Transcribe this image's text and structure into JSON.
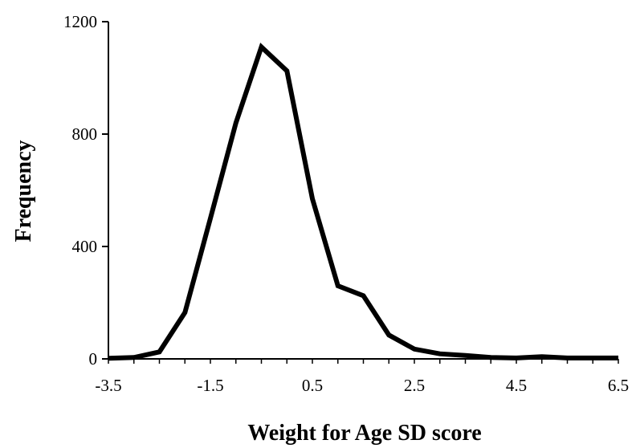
{
  "chart_data": {
    "type": "line",
    "title": "",
    "xlabel": "Weight for Age SD score",
    "ylabel": "Frequency",
    "xlim": [
      -3.5,
      6.5
    ],
    "ylim": [
      0,
      1200
    ],
    "xticks": [
      "-3.5",
      "-1.5",
      "0.5",
      "2.5",
      "4.5",
      "6.5"
    ],
    "yticks": [
      "0",
      "400",
      "800",
      "1200"
    ],
    "grid": false,
    "legend": "none",
    "line_color": "#000000",
    "series": [
      {
        "x": [
          -3.5,
          -3.0,
          -2.5,
          -2.0,
          -1.5,
          -1.0,
          -0.5,
          0.0,
          0.5,
          1.0,
          1.5,
          2.0,
          2.5,
          3.0,
          3.5,
          4.0,
          4.5,
          5.0,
          5.5,
          6.0,
          6.5
        ],
        "values": [
          2,
          5,
          25,
          165,
          500,
          840,
          1110,
          1025,
          570,
          260,
          225,
          85,
          35,
          18,
          12,
          5,
          3,
          8,
          3,
          3,
          3
        ]
      }
    ]
  }
}
